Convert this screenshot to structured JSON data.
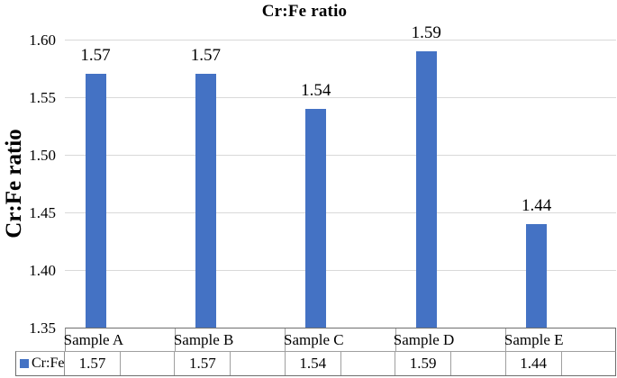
{
  "title": "Cr:Fe ratio",
  "y_axis": {
    "label": "Cr:Fe ratio",
    "ticks": [
      "1.60",
      "1.55",
      "1.50",
      "1.45",
      "1.40",
      "1.35"
    ]
  },
  "chart_data": {
    "type": "bar",
    "title": "Cr:Fe ratio",
    "categories": [
      "Sample A",
      "Sample B",
      "Sample C",
      "Sample D",
      "Sample E"
    ],
    "series": [
      {
        "name": "Cr:Fe",
        "values": [
          1.57,
          1.57,
          1.54,
          1.59,
          1.44
        ]
      }
    ],
    "data_labels": [
      "1.57",
      "1.57",
      "1.54",
      "1.59",
      "1.44"
    ],
    "xlabel": "",
    "ylabel": "Cr:Fe ratio",
    "ylim": [
      1.35,
      1.6
    ],
    "ytick_interval": 0.05,
    "grid": true,
    "legend_position": "bottom-data-table-left",
    "bar_color": "#4472C4",
    "gridline_color": "#D9D9D9"
  },
  "data_table": {
    "legend_label": "Cr:Fe",
    "legend_color": "#4472C4",
    "columns": [
      "Sample A",
      "Sample B",
      "Sample C",
      "Sample D",
      "Sample E"
    ],
    "values": [
      "1.57",
      "1.57",
      "1.54",
      "1.59",
      "1.44"
    ]
  }
}
